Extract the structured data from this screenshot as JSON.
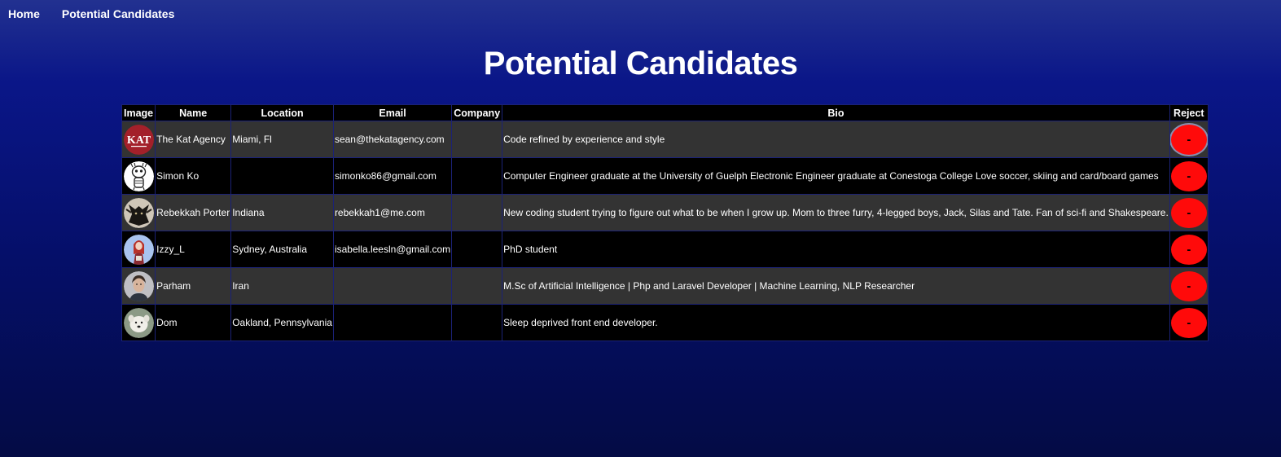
{
  "nav": {
    "home": "Home",
    "candidates": "Potential Candidates"
  },
  "page": {
    "title": "Potential Candidates"
  },
  "table": {
    "headers": {
      "image": "Image",
      "name": "Name",
      "location": "Location",
      "email": "Email",
      "company": "Company",
      "bio": "Bio",
      "reject": "Reject"
    },
    "reject_label": "-",
    "rows": [
      {
        "avatar": "kat-agency-logo",
        "name": "The Kat Agency",
        "location": "Miami, Fl",
        "email": "sean@thekatagency.com",
        "company": "",
        "bio": "Code refined by experience and style"
      },
      {
        "avatar": "cartoon-sketch-avatar",
        "name": "Simon Ko",
        "location": "",
        "email": "simonko86@gmail.com",
        "company": "",
        "bio": "Computer Engineer graduate at the University of Guelph Electronic Engineer graduate at Conestoga College Love soccer, skiing and card/board games"
      },
      {
        "avatar": "dark-creature-avatar",
        "name": "Rebekkah Porter",
        "location": "Indiana",
        "email": "rebekkah1@me.com",
        "company": "",
        "bio": "New coding student trying to figure out what to be when I grow up. Mom to three furry, 4-legged boys, Jack, Silas and Tate. Fan of sci-fi and Shakespeare."
      },
      {
        "avatar": "illustrated-girl-avatar",
        "name": "Izzy_L",
        "location": "Sydney, Australia",
        "email": "isabella.leesln@gmail.com",
        "company": "",
        "bio": "PhD student"
      },
      {
        "avatar": "portrait-photo-avatar",
        "name": "Parham",
        "location": "Iran",
        "email": "",
        "company": "",
        "bio": "M.Sc of Artificial Intelligence | Php and Laravel Developer | Machine Learning, NLP Researcher"
      },
      {
        "avatar": "white-dog-avatar",
        "name": "Dom",
        "location": "Oakland, Pennsylvania",
        "email": "",
        "company": "",
        "bio": "Sleep deprived front end developer."
      }
    ]
  },
  "avatar_logo_text": "KAT",
  "colors": {
    "reject": "#ff0a0a",
    "row_alt": "#333333",
    "row_base": "#000000"
  }
}
